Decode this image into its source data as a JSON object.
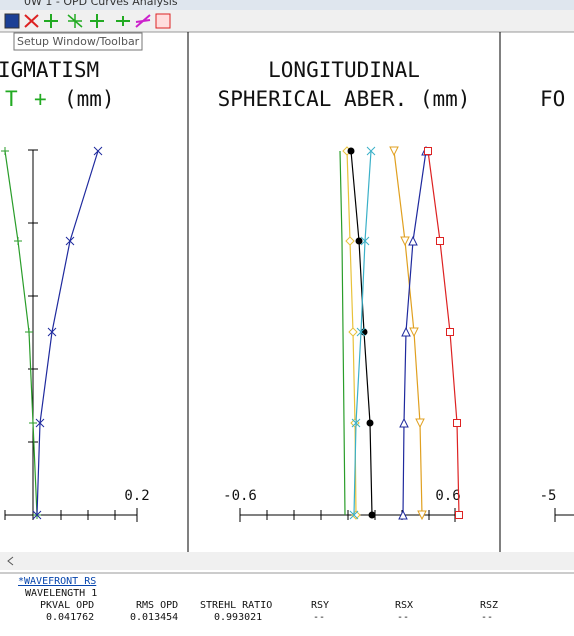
{
  "title_bar": "0W 1 - OPD Curves Analysis",
  "toolbar": {
    "tooltip": "Setup Window/Toolbar"
  },
  "panels": [
    {
      "title": "IGMATISM",
      "legend": [
        "T",
        "+",
        "(mm)"
      ],
      "axis_max": "0.2"
    },
    {
      "title": "LONGITUDINAL",
      "subtitle": "SPHERICAL ABER. (mm)",
      "axis_min": "-0.6",
      "axis_max": "0.6"
    },
    {
      "title": "FO",
      "axis_min": "-5"
    }
  ],
  "output": {
    "link": "*WAVEFRONT RS",
    "wavelength": "WAVELENGTH 1",
    "headers": [
      "PKVAL OPD",
      "RMS OPD",
      "STREHL RATIO",
      "RSY",
      "RSX",
      "RSZ"
    ],
    "values": [
      "0.041762",
      "0.013454",
      "0.993021",
      "--",
      "--",
      "--"
    ]
  }
}
